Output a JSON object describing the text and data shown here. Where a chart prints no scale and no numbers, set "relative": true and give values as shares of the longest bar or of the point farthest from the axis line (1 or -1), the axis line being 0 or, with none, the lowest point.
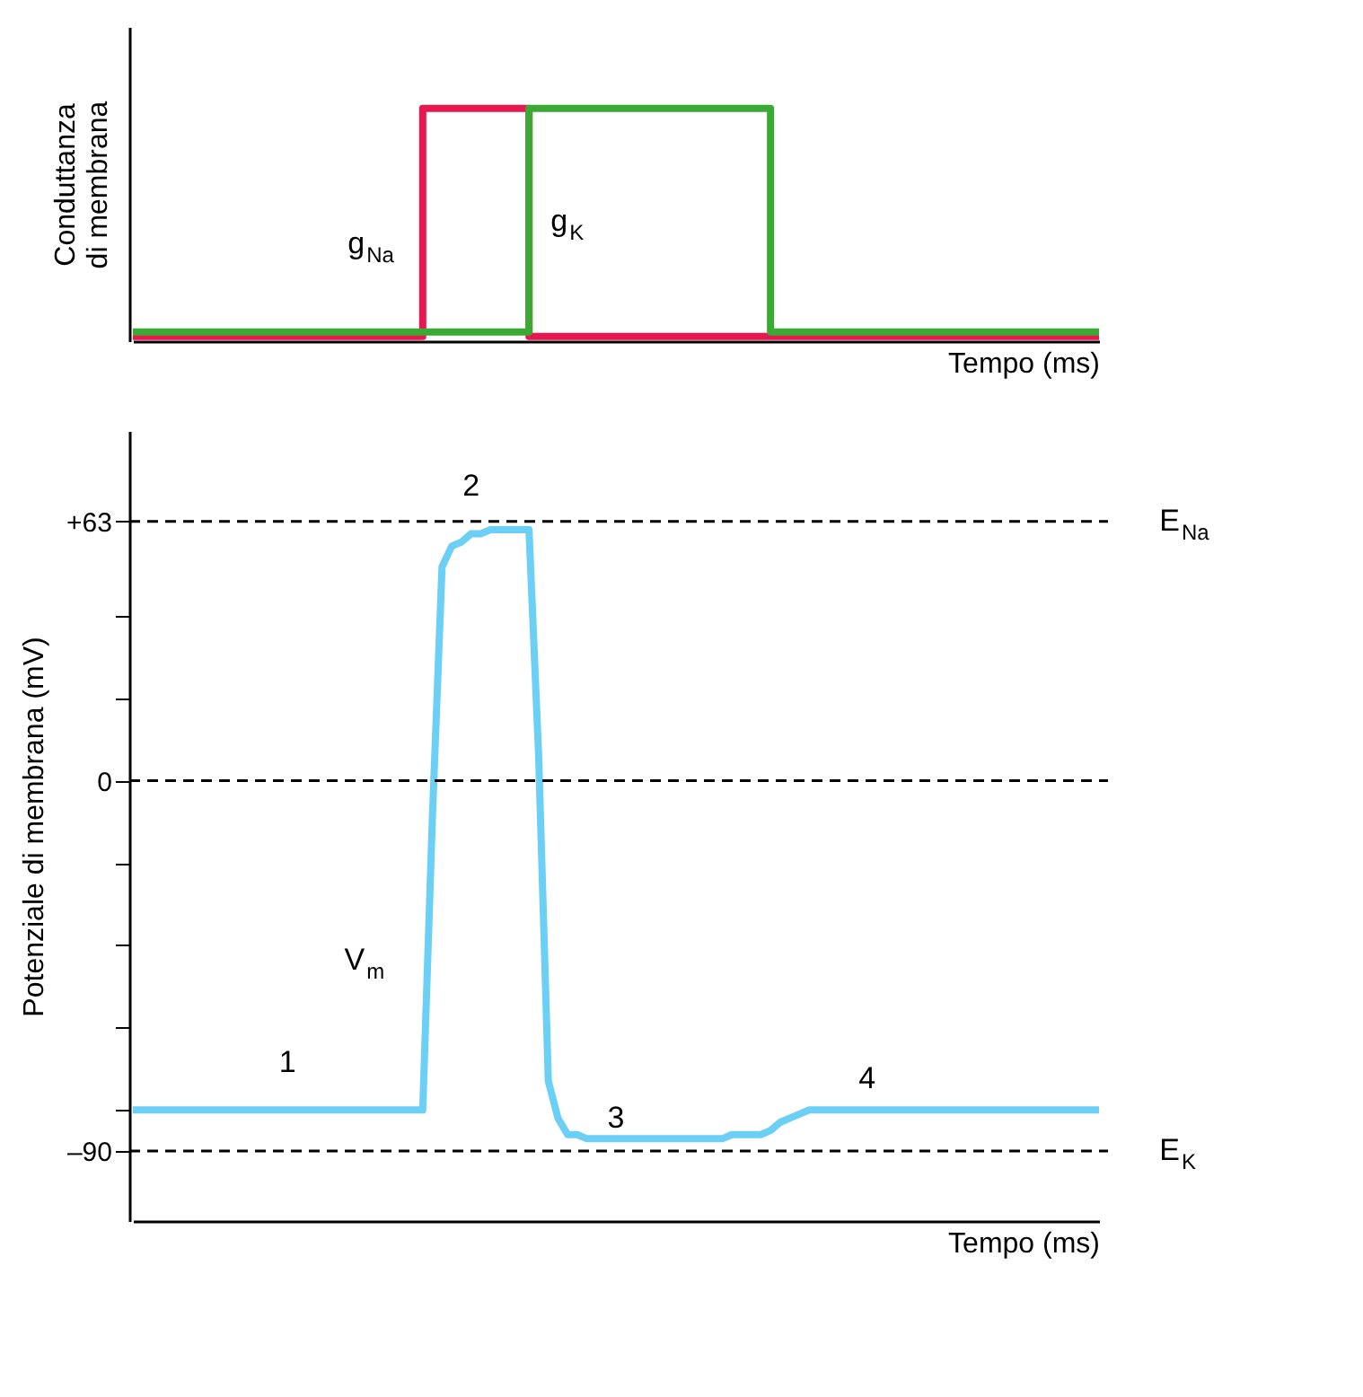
{
  "chart_data": [
    {
      "type": "step",
      "relative": true,
      "ylabel": "Conduttanza\ndi membrana",
      "xlabel": "Tempo (ms)",
      "tick_labels": false,
      "grid": false,
      "categories": [
        null,
        null,
        null,
        null,
        null,
        null,
        null,
        null,
        null,
        null,
        null,
        null,
        null,
        null,
        null,
        null,
        null,
        null,
        null,
        null,
        null,
        null,
        null,
        null,
        null,
        null,
        null,
        null,
        null,
        null,
        null,
        null,
        null,
        null,
        null,
        null,
        null,
        null,
        null,
        null,
        null,
        null,
        null,
        null,
        null,
        null,
        null,
        null,
        null,
        null,
        null,
        null,
        null,
        null,
        null,
        null,
        null,
        null,
        null,
        null,
        null,
        null,
        null,
        null,
        null,
        null,
        null,
        null,
        null,
        null,
        null,
        null,
        null,
        null,
        null,
        null,
        null,
        null,
        null,
        null,
        null,
        null,
        null,
        null,
        null,
        null,
        null,
        null,
        null,
        null,
        null,
        null,
        null,
        null,
        null,
        null,
        null,
        null,
        null,
        null,
        null
      ],
      "series": [
        {
          "color": "#e8174f",
          "values": [
            0.02,
            0.02,
            0.02,
            0.02,
            0.02,
            0.02,
            0.02,
            0.02,
            0.02,
            0.02,
            0.02,
            0.02,
            0.02,
            0.02,
            0.02,
            0.02,
            0.02,
            0.02,
            0.02,
            0.02,
            0.02,
            0.02,
            0.02,
            0.02,
            0.02,
            0.02,
            0.02,
            0.02,
            0.02,
            0.02,
            1,
            1,
            1,
            1,
            1,
            1,
            1,
            1,
            1,
            1,
            1,
            0.02,
            0.02,
            0.02,
            0.02,
            0.02,
            0.02,
            0.02,
            0.02,
            0.02,
            0.02,
            0.02,
            0.02,
            0.02,
            0.02,
            0.02,
            0.02,
            0.02,
            0.02,
            0.02,
            0.02,
            0.02,
            0.02,
            0.02,
            0.02,
            0.02,
            0.02,
            0.02,
            0.02,
            0.02,
            0.02,
            0.02,
            0.02,
            0.02,
            0.02,
            0.02,
            0.02,
            0.02,
            0.02,
            0.02,
            0.02,
            0.02,
            0.02,
            0.02,
            0.02,
            0.02,
            0.02,
            0.02,
            0.02,
            0.02,
            0.02,
            0.02,
            0.02,
            0.02,
            0.02,
            0.02,
            0.02,
            0.02,
            0.02,
            0.02,
            0.02
          ]
        },
        {
          "color": "#3aaa35",
          "values": [
            0.04,
            0.04,
            0.04,
            0.04,
            0.04,
            0.04,
            0.04,
            0.04,
            0.04,
            0.04,
            0.04,
            0.04,
            0.04,
            0.04,
            0.04,
            0.04,
            0.04,
            0.04,
            0.04,
            0.04,
            0.04,
            0.04,
            0.04,
            0.04,
            0.04,
            0.04,
            0.04,
            0.04,
            0.04,
            0.04,
            0.04,
            0.04,
            0.04,
            0.04,
            0.04,
            0.04,
            0.04,
            0.04,
            0.04,
            0.04,
            0.04,
            1,
            1,
            1,
            1,
            1,
            1,
            1,
            1,
            1,
            1,
            1,
            1,
            1,
            1,
            1,
            1,
            1,
            1,
            1,
            1,
            1,
            1,
            1,
            1,
            1,
            0.04,
            0.04,
            0.04,
            0.04,
            0.04,
            0.04,
            0.04,
            0.04,
            0.04,
            0.04,
            0.04,
            0.04,
            0.04,
            0.04,
            0.04,
            0.04,
            0.04,
            0.04,
            0.04,
            0.04,
            0.04,
            0.04,
            0.04,
            0.04,
            0.04,
            0.04,
            0.04,
            0.04,
            0.04,
            0.04,
            0.04,
            0.04,
            0.04,
            0.04,
            0.04
          ]
        }
      ],
      "annotations": [
        "g$_{Na}$",
        "g$_{K}$"
      ]
    },
    {
      "type": "line",
      "ylabel": "Potenziale di membrana (mV)",
      "xlabel": "Tempo (ms)",
      "ylim": [
        -107,
        85
      ],
      "tick_labels": "y",
      "grid": false,
      "yticks": [
        {
          "value": 63,
          "label": "+63"
        },
        {
          "value": 40,
          "label": null
        },
        {
          "value": 20,
          "label": null
        },
        0,
        {
          "value": -20,
          "label": null
        },
        {
          "value": -40,
          "label": null
        },
        {
          "value": -60,
          "label": null
        },
        {
          "value": -80,
          "label": null
        },
        {
          "value": -90,
          "label": "–90"
        }
      ],
      "categories": [
        null,
        null,
        null,
        null,
        null,
        null,
        null,
        null,
        null,
        null,
        null,
        null,
        null,
        null,
        null,
        null,
        null,
        null,
        null,
        null,
        null,
        null,
        null,
        null,
        null,
        null,
        null,
        null,
        null,
        null,
        null,
        null,
        null,
        null,
        null,
        null,
        null,
        null,
        null,
        null,
        null,
        null,
        null,
        null,
        null,
        null,
        null,
        null,
        null,
        null,
        null,
        null,
        null,
        null,
        null,
        null,
        null,
        null,
        null,
        null,
        null,
        null,
        null,
        null,
        null,
        null,
        null,
        null,
        null,
        null,
        null,
        null,
        null,
        null,
        null,
        null,
        null,
        null,
        null,
        null,
        null,
        null,
        null,
        null,
        null,
        null,
        null,
        null,
        null,
        null,
        null,
        null,
        null,
        null,
        null,
        null,
        null,
        null,
        null,
        null,
        null
      ],
      "series": [
        {
          "color": "#6ccff6",
          "values": [
            -80,
            -80,
            -80,
            -80,
            -80,
            -80,
            -80,
            -80,
            -80,
            -80,
            -80,
            -80,
            -80,
            -80,
            -80,
            -80,
            -80,
            -80,
            -80,
            -80,
            -80,
            -80,
            -80,
            -80,
            -80,
            -80,
            -80,
            -80,
            -80,
            -80,
            -80,
            -9,
            52,
            57,
            58,
            60,
            60,
            61,
            61,
            61,
            61,
            61,
            6,
            -73,
            -82,
            -86,
            -86,
            -87,
            -87,
            -87,
            -87,
            -87,
            -87,
            -87,
            -87,
            -87,
            -87,
            -87,
            -87,
            -87,
            -87,
            -87,
            -86,
            -86,
            -86,
            -86,
            -85,
            -83,
            -82,
            -81,
            -80,
            -80,
            -80,
            -80,
            -80,
            -80,
            -80,
            -80,
            -80,
            -80,
            -80,
            -80,
            -80,
            -80,
            -80,
            -80,
            -80,
            -80,
            -80,
            -80,
            -80,
            -80,
            -80,
            -80,
            -80,
            -80,
            -80,
            -80,
            -80,
            -80,
            -80
          ]
        }
      ],
      "ref_lines": [
        {
          "axis": "y",
          "value": 63,
          "label": "E$_{Na}$",
          "color": "#000000",
          "line_style": "dashed"
        },
        {
          "axis": "y",
          "value": 0,
          "color": "#000000",
          "line_style": "dashed"
        },
        {
          "axis": "y",
          "value": -90,
          "label": "E$_{K}$",
          "color": "#000000",
          "line_style": "dashed"
        }
      ],
      "annotations": [
        "V$_{m}$",
        "1",
        "2",
        "3",
        "4"
      ]
    }
  ]
}
